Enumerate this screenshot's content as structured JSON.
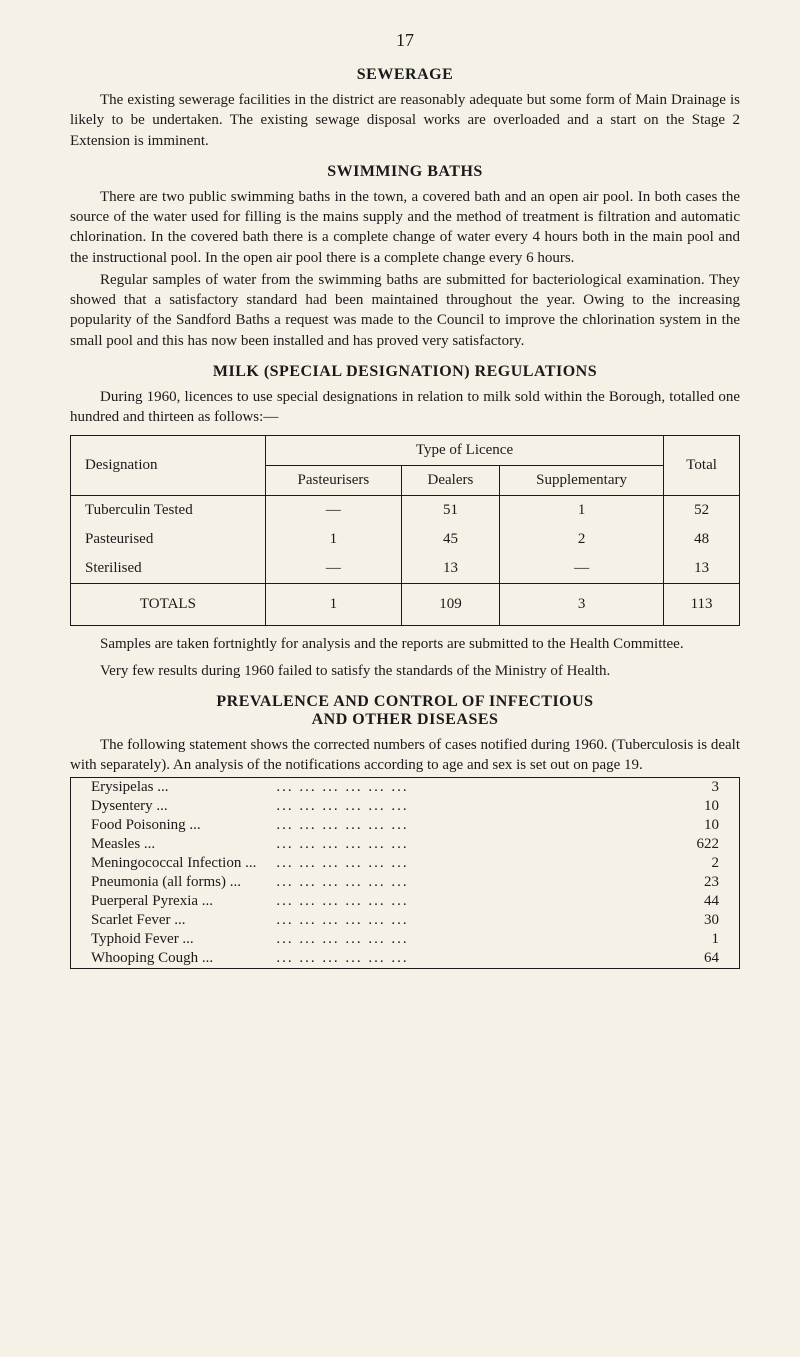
{
  "page_number": "17",
  "sections": {
    "sewerage": {
      "title": "SEWERAGE",
      "para1": "The existing sewerage facilities in the district are reasonably adequate but some form of Main Drainage is likely to be undertaken. The existing sewage disposal works are overloaded and a start on the Stage 2 Extension is imminent."
    },
    "swimming": {
      "title": "SWIMMING BATHS",
      "para1": "There are two public swimming baths in the town, a covered bath and an open air pool. In both cases the source of the water used for filling is the mains supply and the method of treatment is filtration and automatic chlorination. In the covered bath there is a complete change of water every 4 hours both in the main pool and the instructional pool. In the open air pool there is a complete change every 6 hours.",
      "para2": "Regular samples of water from the swimming baths are submitted for bacteriological examination. They showed that a satisfactory standard had been maintained throughout the year. Owing to the increasing popularity of the Sandford Baths a request was made to the Council to improve the chlorination system in the small pool and this has now been installed and has proved very satisfactory."
    },
    "milk": {
      "title": "MILK (SPECIAL DESIGNATION) REGULATIONS",
      "para1": "During 1960, licences to use special designations in relation to milk sold within the Borough, totalled one hundred and thirteen as follows:—",
      "table": {
        "col_designation": "Designation",
        "col_type": "Type of Licence",
        "col_pasteurisers": "Pasteurisers",
        "col_dealers": "Dealers",
        "col_supplementary": "Supplementary",
        "col_total": "Total",
        "rows": [
          {
            "d": "Tuberculin Tested",
            "p": "—",
            "de": "51",
            "s": "1",
            "t": "52"
          },
          {
            "d": "Pasteurised",
            "p": "1",
            "de": "45",
            "s": "2",
            "t": "48"
          },
          {
            "d": "Sterilised",
            "p": "—",
            "de": "13",
            "s": "—",
            "t": "13"
          }
        ],
        "totals_label": "TOTALS",
        "totals": {
          "p": "1",
          "de": "109",
          "s": "3",
          "t": "113"
        }
      },
      "note1": "Samples are taken fortnightly for analysis and the reports are submitted to the Health Committee.",
      "note2": "Very few results during 1960 failed to satisfy the standards of the Ministry of Health."
    },
    "diseases": {
      "title1": "PREVALENCE AND CONTROL OF INFECTIOUS",
      "title2": "AND OTHER DISEASES",
      "para1": "The following statement shows the corrected numbers of cases notified during 1960. (Tuberculosis is dealt with separately). An analysis of the notifications according to age and sex is set out on page 19.",
      "list": [
        {
          "name": "Erysipelas",
          "val": "3"
        },
        {
          "name": "Dysentery",
          "val": "10"
        },
        {
          "name": "Food Poisoning",
          "val": "10"
        },
        {
          "name": "Measles",
          "val": "622"
        },
        {
          "name": "Meningococcal Infection",
          "val": "2"
        },
        {
          "name": "Pneumonia (all forms)",
          "val": "23"
        },
        {
          "name": "Puerperal Pyrexia",
          "val": "44"
        },
        {
          "name": "Scarlet Fever",
          "val": "30"
        },
        {
          "name": "Typhoid Fever",
          "val": "1"
        },
        {
          "name": "Whooping Cough",
          "val": "64"
        }
      ]
    }
  },
  "colors": {
    "background": "#f5f1e6",
    "text": "#1a1a1a",
    "border": "#1a1a1a"
  },
  "typography": {
    "body_size_pt": 15,
    "title_size_pt": 16,
    "font_family": "serif"
  }
}
